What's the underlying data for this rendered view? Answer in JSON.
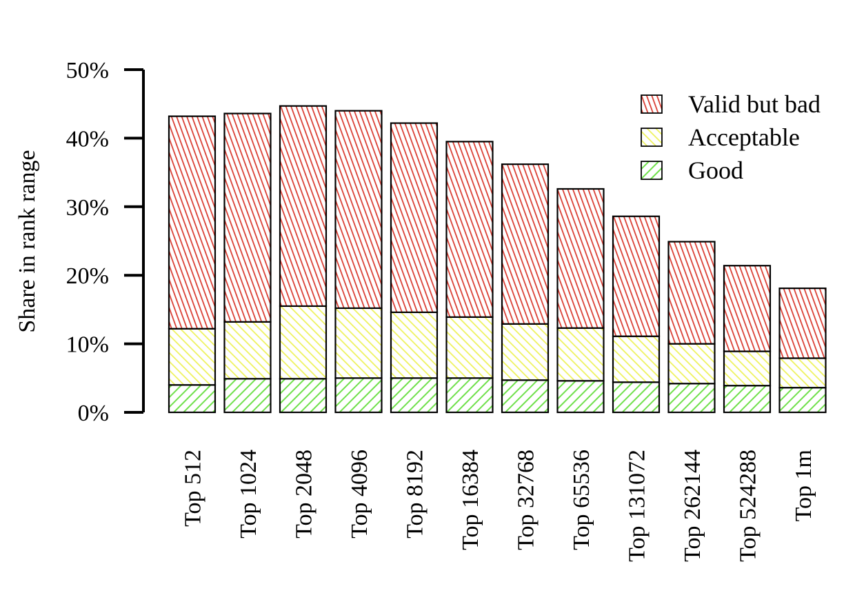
{
  "chart_data": {
    "type": "bar",
    "stacked": true,
    "title": "",
    "xlabel": "",
    "ylabel": "Share in rank range",
    "ylim": [
      0,
      50
    ],
    "yticks": [
      "0%",
      "10%",
      "20%",
      "30%",
      "40%",
      "50%"
    ],
    "ytick_values": [
      0,
      10,
      20,
      30,
      40,
      50
    ],
    "grid": false,
    "legend_position": "top-right",
    "categories": [
      "Top 512",
      "Top 1024",
      "Top 2048",
      "Top 4096",
      "Top 8192",
      "Top 16384",
      "Top 32768",
      "Top 65536",
      "Top 131072",
      "Top 262144",
      "Top 524288",
      "Top 1m"
    ],
    "series": [
      {
        "name": "Good",
        "color": "#7ee85e",
        "pattern": "diagonal-forward",
        "values": [
          4.0,
          4.9,
          4.9,
          5.0,
          5.0,
          5.0,
          4.7,
          4.6,
          4.4,
          4.2,
          3.9,
          3.6
        ]
      },
      {
        "name": "Acceptable",
        "color": "#f4f78a",
        "pattern": "diagonal-back",
        "values": [
          8.2,
          8.3,
          10.6,
          10.2,
          9.6,
          8.9,
          8.2,
          7.7,
          6.7,
          5.8,
          5.0,
          4.3
        ]
      },
      {
        "name": "Valid but bad",
        "color": "#e0544a",
        "pattern": "diagonal-steep",
        "values": [
          31.0,
          30.4,
          29.2,
          28.8,
          27.6,
          25.6,
          23.3,
          20.3,
          17.5,
          14.9,
          12.5,
          10.2
        ]
      }
    ],
    "legend_order": [
      "Valid but bad",
      "Acceptable",
      "Good"
    ]
  }
}
